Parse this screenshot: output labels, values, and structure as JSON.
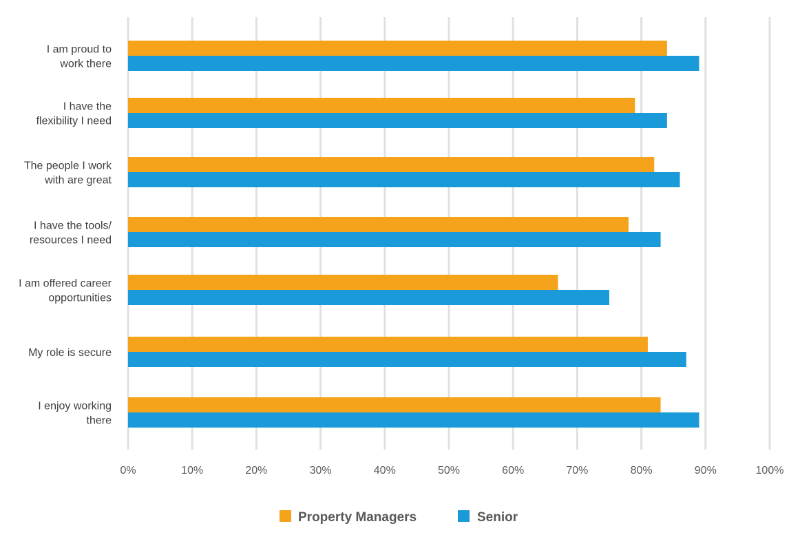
{
  "chart_data": {
    "type": "bar",
    "orientation": "horizontal",
    "title": "",
    "xlabel": "",
    "ylabel": "",
    "categories": [
      [
        "I am proud to",
        "work there"
      ],
      [
        "I have the",
        "flexibility I need"
      ],
      [
        "The people I work",
        "with are great"
      ],
      [
        "I have the tools/",
        "resources I need"
      ],
      [
        "I am offered career",
        "opportunities"
      ],
      [
        "My role is secure"
      ],
      [
        "I enjoy working",
        "there"
      ]
    ],
    "series": [
      {
        "name": "Property Managers",
        "color": "#f5a31a",
        "values": [
          84,
          79,
          82,
          78,
          67,
          81,
          83
        ]
      },
      {
        "name": "Senior",
        "color": "#1a9ad9",
        "values": [
          89,
          84,
          86,
          83,
          75,
          87,
          89
        ]
      }
    ],
    "xlim": [
      0,
      100
    ],
    "ticks": [
      0,
      10,
      20,
      30,
      40,
      50,
      60,
      70,
      80,
      90,
      100
    ],
    "tick_format": "{v}%",
    "grid": true,
    "gridline_color": "#e0e0e0",
    "legend_position": "bottom"
  }
}
